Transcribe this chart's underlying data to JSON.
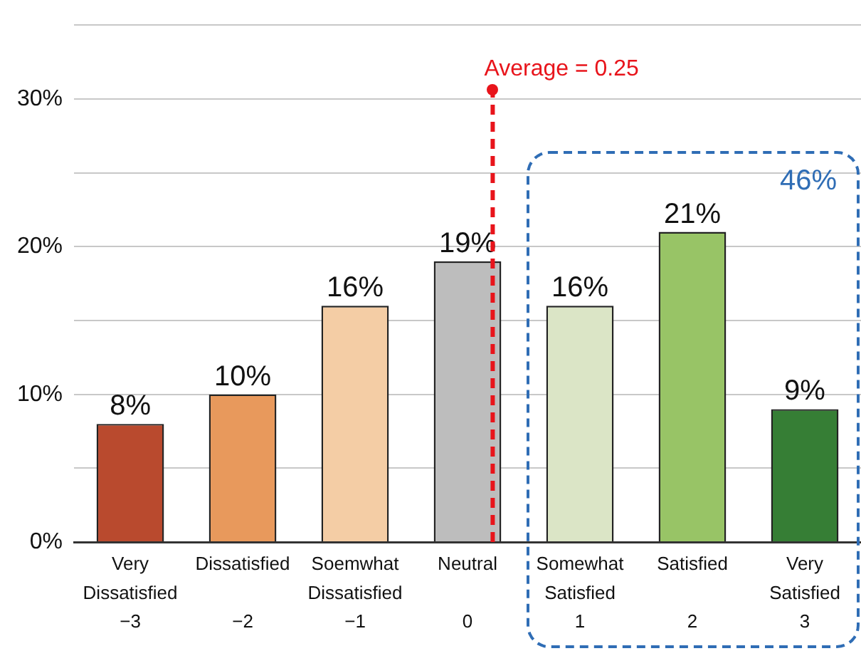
{
  "chart_data": {
    "type": "bar",
    "categories": [
      "Very Dissatisfied −3",
      "Dissatisfied −2",
      "Soemwhat Dissatisfied −1",
      "Neutral 0",
      "Somewhat Satisfied 1",
      "Satisfied 2",
      "Very Satisfied 3"
    ],
    "values": [
      8,
      10,
      16,
      19,
      16,
      21,
      9
    ],
    "colors": [
      "#b94a2e",
      "#e8995c",
      "#f4cda5",
      "#bdbdbd",
      "#dbe5c6",
      "#98c466",
      "#367e35"
    ],
    "value_labels": [
      "8%",
      "10%",
      "16%",
      "19%",
      "16%",
      "21%",
      "9%"
    ],
    "ylim": [
      0,
      35
    ],
    "yticks": [
      {
        "value": 0,
        "label": "0%"
      },
      {
        "value": 5,
        "label": null
      },
      {
        "value": 10,
        "label": "10%"
      },
      {
        "value": 15,
        "label": null
      },
      {
        "value": 20,
        "label": "20%"
      },
      {
        "value": 25,
        "label": null
      },
      {
        "value": 30,
        "label": "30%"
      },
      {
        "value": 35,
        "label": null
      }
    ],
    "grid": "y",
    "legend": false,
    "ref_lines": [
      {
        "axis": "x",
        "value": "Neutral 0",
        "label": "Average = 0.25",
        "color": "#e8141b",
        "line_style": "dashed"
      }
    ],
    "annotations": [
      "46%"
    ]
  }
}
